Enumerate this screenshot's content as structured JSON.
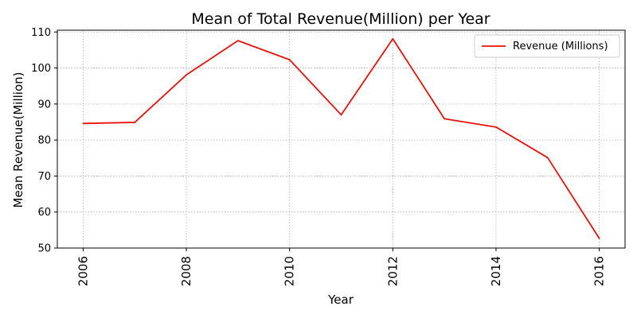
{
  "chart_data": {
    "type": "line",
    "title": "Mean of Total Revenue(Million) per Year",
    "xlabel": "Year",
    "ylabel": "Mean Revenue(Million)",
    "x": [
      2006,
      2007,
      2008,
      2009,
      2010,
      2011,
      2012,
      2013,
      2014,
      2015,
      2016
    ],
    "series": [
      {
        "name": "Revenue (Millions)",
        "color": "#e8120c",
        "values": [
          84.6,
          84.9,
          98.1,
          107.6,
          102.3,
          87.0,
          108.1,
          85.9,
          83.6,
          75.1,
          52.7
        ]
      }
    ],
    "xlim": [
      2005.5,
      2016.5
    ],
    "ylim": [
      50,
      110.5
    ],
    "xticks": [
      2006,
      2008,
      2010,
      2012,
      2014,
      2016
    ],
    "yticks": [
      50,
      60,
      70,
      80,
      90,
      100,
      110
    ],
    "grid": true,
    "legend_position": "top-right"
  }
}
